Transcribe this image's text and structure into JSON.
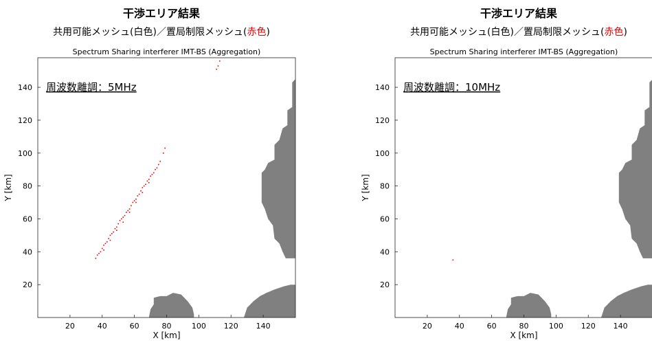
{
  "panels": [
    {
      "title": "干渉エリア結果",
      "subtitle_prefix": "共用可能メッシュ(白色)／置局制限メッシュ(",
      "subtitle_red": "赤色",
      "subtitle_suffix": ")",
      "note": "周波数離調：5MHz"
    },
    {
      "title": "干渉エリア結果",
      "subtitle_prefix": "共用可能メッシュ(白色)／置局制限メッシュ(",
      "subtitle_red": "赤色",
      "subtitle_suffix": ")",
      "note": "周波数離調：10MHz"
    }
  ],
  "colors": {
    "restricted": "#e60000",
    "terrain": "#808080",
    "highlight_red": "#e60000"
  },
  "chart_data": [
    {
      "type": "scatter",
      "title": "Spectrum Sharing interferer IMT-BS (Aggregation)",
      "xlabel": "X [km]",
      "ylabel": "Y [km]",
      "xlim": [
        0,
        160
      ],
      "ylim": [
        0,
        158
      ],
      "xticks": [
        "20",
        "40",
        "60",
        "80",
        "100",
        "120",
        "140"
      ],
      "yticks": [
        "20",
        "40",
        "60",
        "80",
        "100",
        "120",
        "140"
      ],
      "series": [
        {
          "points": [
            [
              36,
              36
            ],
            [
              38,
              39
            ],
            [
              40,
              42
            ],
            [
              42,
              45
            ],
            [
              44,
              48
            ],
            [
              46,
              51
            ],
            [
              48,
              54
            ],
            [
              50,
              57
            ],
            [
              52,
              60
            ],
            [
              54,
              62
            ],
            [
              56,
              65
            ],
            [
              58,
              68
            ],
            [
              60,
              71
            ],
            [
              62,
              74
            ],
            [
              64,
              77
            ],
            [
              66,
              80
            ],
            [
              68,
              83
            ],
            [
              70,
              86
            ],
            [
              72,
              88
            ],
            [
              74,
              91
            ],
            [
              76,
              95
            ],
            [
              78,
              100
            ],
            [
              79,
              103
            ],
            [
              37,
              38
            ],
            [
              39,
              40
            ],
            [
              41,
              44
            ],
            [
              43,
              46
            ],
            [
              45,
              50
            ],
            [
              47,
              52
            ],
            [
              49,
              55
            ],
            [
              51,
              59
            ],
            [
              53,
              61
            ],
            [
              55,
              64
            ],
            [
              57,
              66
            ],
            [
              59,
              70
            ],
            [
              61,
              72
            ],
            [
              63,
              75
            ],
            [
              65,
              79
            ],
            [
              67,
              81
            ],
            [
              69,
              84
            ],
            [
              71,
              87
            ],
            [
              73,
              90
            ],
            [
              75,
              93
            ],
            [
              41,
              41
            ],
            [
              45,
              47
            ],
            [
              49,
              53
            ],
            [
              53,
              58
            ],
            [
              57,
              64
            ],
            [
              61,
              70
            ],
            [
              65,
              76
            ],
            [
              69,
              82
            ],
            [
              111,
              151
            ],
            [
              112,
              153
            ],
            [
              113,
              156
            ]
          ]
        }
      ]
    },
    {
      "type": "scatter",
      "title": "Spectrum Sharing interferer IMT-BS (Aggregation)",
      "xlabel": "X [km]",
      "ylabel": "Y [km]",
      "xlim": [
        0,
        160
      ],
      "ylim": [
        0,
        158
      ],
      "xticks": [
        "20",
        "40",
        "60",
        "80",
        "100",
        "120",
        "140"
      ],
      "yticks": [
        "20",
        "40",
        "60",
        "80",
        "100",
        "120",
        "140"
      ],
      "series": [
        {
          "points": [
            [
              36,
              35
            ]
          ]
        }
      ]
    }
  ]
}
